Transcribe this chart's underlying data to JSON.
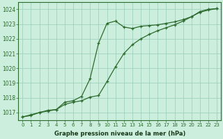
{
  "line1_x": [
    0,
    1,
    2,
    3,
    4,
    5,
    6,
    7,
    8,
    9,
    10,
    11,
    12,
    13,
    14,
    15,
    16,
    17,
    18,
    19,
    20,
    21,
    22,
    23
  ],
  "line1_y": [
    1016.7,
    1016.8,
    1017.0,
    1017.1,
    1017.2,
    1017.7,
    1017.8,
    1018.1,
    1019.3,
    1021.7,
    1023.05,
    1023.2,
    1022.8,
    1022.7,
    1022.85,
    1022.9,
    1022.95,
    1023.05,
    1023.15,
    1023.3,
    1023.5,
    1023.85,
    1024.0,
    1024.05
  ],
  "line2_x": [
    0,
    1,
    2,
    3,
    4,
    5,
    6,
    7,
    8,
    9,
    10,
    11,
    12,
    13,
    14,
    15,
    16,
    17,
    18,
    19,
    20,
    21,
    22,
    23
  ],
  "line2_y": [
    1016.7,
    1016.85,
    1017.0,
    1017.15,
    1017.2,
    1017.55,
    1017.7,
    1017.8,
    1018.05,
    1018.15,
    1019.1,
    1020.1,
    1021.0,
    1021.6,
    1022.0,
    1022.3,
    1022.55,
    1022.75,
    1022.95,
    1023.2,
    1023.5,
    1023.8,
    1023.95,
    1024.05
  ],
  "line_color": "#2d6a2d",
  "bg_color": "#cceedd",
  "grid_color": "#99ccbb",
  "xlabel": "Graphe pression niveau de la mer (hPa)",
  "ylim": [
    1016.5,
    1024.5
  ],
  "xlim": [
    -0.5,
    23.5
  ],
  "yticks": [
    1017,
    1018,
    1019,
    1020,
    1021,
    1022,
    1023,
    1024
  ],
  "xticks": [
    0,
    1,
    2,
    3,
    4,
    5,
    6,
    7,
    8,
    9,
    10,
    11,
    12,
    13,
    14,
    15,
    16,
    17,
    18,
    19,
    20,
    21,
    22,
    23
  ]
}
